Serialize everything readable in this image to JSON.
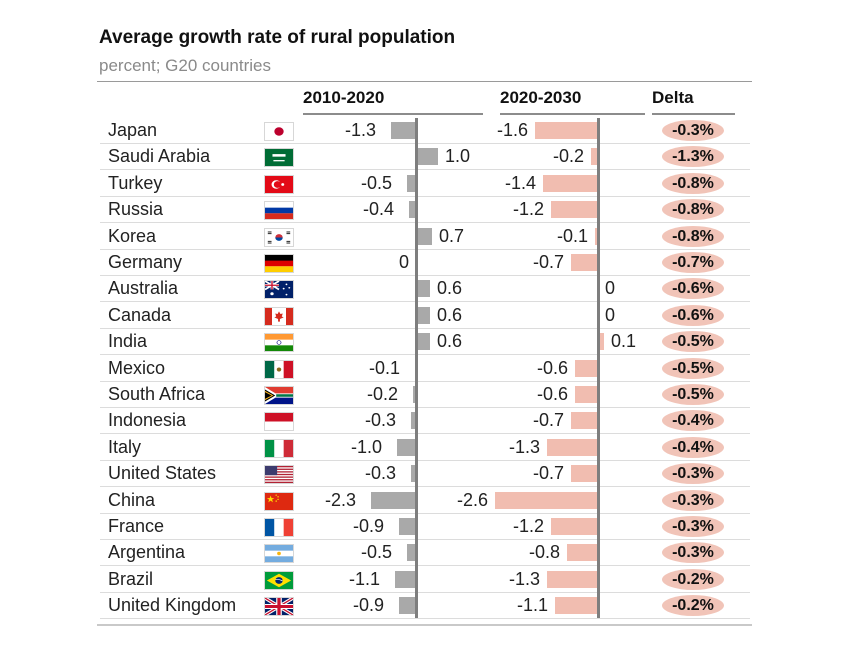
{
  "title": "Average growth rate of rural population",
  "subtitle": "percent; G20 countries",
  "columns": {
    "p1": "2010-2020",
    "p2": "2020-2030",
    "delta": "Delta"
  },
  "colors": {
    "bar_2010_2020": "#a9a9a9",
    "bar_2020_2030": "#f1bdb0",
    "delta_badge": "#f1c4b8",
    "axis": "#7e7e7e"
  },
  "rows": [
    {
      "country": "Japan",
      "flag": "japan-flag-icon",
      "v1": "-1.3",
      "v2": "-1.6",
      "delta": "-0.3%"
    },
    {
      "country": "Saudi Arabia",
      "flag": "saudi-arabia-flag-icon",
      "v1": "1.0",
      "v2": "-0.2",
      "delta": "-1.3%"
    },
    {
      "country": "Turkey",
      "flag": "turkey-flag-icon",
      "v1": "-0.5",
      "v2": "-1.4",
      "delta": "-0.8%"
    },
    {
      "country": "Russia",
      "flag": "russia-flag-icon",
      "v1": "-0.4",
      "v2": "-1.2",
      "delta": "-0.8%"
    },
    {
      "country": "Korea",
      "flag": "korea-flag-icon",
      "v1": "0.7",
      "v2": "-0.1",
      "delta": "-0.8%"
    },
    {
      "country": "Germany",
      "flag": "germany-flag-icon",
      "v1": "0",
      "v2": "-0.7",
      "delta": "-0.7%"
    },
    {
      "country": "Australia",
      "flag": "australia-flag-icon",
      "v1": "0.6",
      "v2": "0",
      "delta": "-0.6%"
    },
    {
      "country": "Canada",
      "flag": "canada-flag-icon",
      "v1": "0.6",
      "v2": "0",
      "delta": "-0.6%"
    },
    {
      "country": "India",
      "flag": "india-flag-icon",
      "v1": "0.6",
      "v2": "0.1",
      "delta": "-0.5%"
    },
    {
      "country": "Mexico",
      "flag": "mexico-flag-icon",
      "v1": "-0.1",
      "v2": "-0.6",
      "delta": "-0.5%"
    },
    {
      "country": "South Africa",
      "flag": "south-africa-flag-icon",
      "v1": "-0.2",
      "v2": "-0.6",
      "delta": "-0.5%"
    },
    {
      "country": "Indonesia",
      "flag": "indonesia-flag-icon",
      "v1": "-0.3",
      "v2": "-0.7",
      "delta": "-0.4%"
    },
    {
      "country": "Italy",
      "flag": "italy-flag-icon",
      "v1": "-1.0",
      "v2": "-1.3",
      "delta": "-0.4%"
    },
    {
      "country": "United States",
      "flag": "united-states-flag-icon",
      "v1": "-0.3",
      "v2": "-0.7",
      "delta": "-0.3%"
    },
    {
      "country": "China",
      "flag": "china-flag-icon",
      "v1": "-2.3",
      "v2": "-2.6",
      "delta": "-0.3%"
    },
    {
      "country": "France",
      "flag": "france-flag-icon",
      "v1": "-0.9",
      "v2": "-1.2",
      "delta": "-0.3%"
    },
    {
      "country": "Argentina",
      "flag": "argentina-flag-icon",
      "v1": "-0.5",
      "v2": "-0.8",
      "delta": "-0.3%"
    },
    {
      "country": "Brazil",
      "flag": "brazil-flag-icon",
      "v1": "-1.1",
      "v2": "-1.3",
      "delta": "-0.2%"
    },
    {
      "country": "United Kingdom",
      "flag": "united-kingdom-flag-icon",
      "v1": "-0.9",
      "v2": "-1.1",
      "delta": "-0.2%"
    }
  ],
  "chart_data": {
    "type": "bar",
    "categories": [
      "Japan",
      "Saudi Arabia",
      "Turkey",
      "Russia",
      "Korea",
      "Germany",
      "Australia",
      "Canada",
      "India",
      "Mexico",
      "South Africa",
      "Indonesia",
      "Italy",
      "United States",
      "China",
      "France",
      "Argentina",
      "Brazil",
      "United Kingdom"
    ],
    "series": [
      {
        "name": "2010-2020",
        "values": [
          -1.3,
          1.0,
          -0.5,
          -0.4,
          0.7,
          0,
          0.6,
          0.6,
          0.6,
          -0.1,
          -0.2,
          -0.3,
          -1.0,
          -0.3,
          -2.3,
          -0.9,
          -0.5,
          -1.1,
          -0.9
        ]
      },
      {
        "name": "2020-2030",
        "values": [
          -1.6,
          -0.2,
          -1.4,
          -1.2,
          -0.1,
          -0.7,
          0,
          0,
          0.1,
          -0.6,
          -0.6,
          -0.7,
          -1.3,
          -0.7,
          -2.6,
          -1.2,
          -0.8,
          -1.3,
          -1.1
        ]
      },
      {
        "name": "Delta",
        "values": [
          -0.3,
          -1.3,
          -0.8,
          -0.8,
          -0.8,
          -0.7,
          -0.6,
          -0.6,
          -0.5,
          -0.5,
          -0.5,
          -0.4,
          -0.4,
          -0.3,
          -0.3,
          -0.3,
          -0.3,
          -0.2,
          -0.2
        ]
      }
    ],
    "title": "Average growth rate of rural population",
    "subtitle": "percent; G20 countries",
    "orientation": "horizontal",
    "legend": "none"
  }
}
